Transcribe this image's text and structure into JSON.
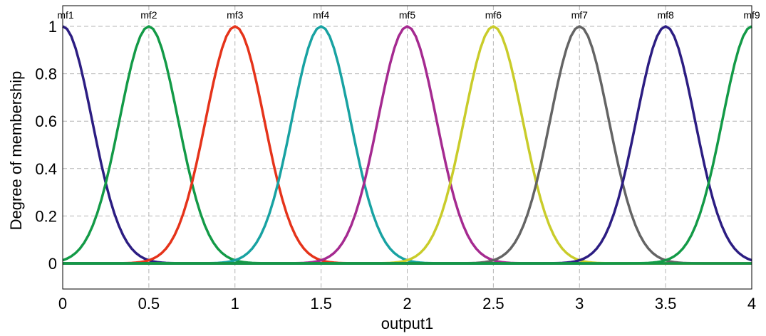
{
  "chart_data": {
    "type": "line",
    "title": "",
    "xlabel": "output1",
    "ylabel": "Degree of membership",
    "xlim": [
      0,
      4
    ],
    "ylim": [
      -0.1,
      1.0
    ],
    "xticks": [
      "0",
      "0.5",
      "1",
      "1.5",
      "2",
      "2.5",
      "3",
      "3.5",
      "4"
    ],
    "yticks": [
      "0",
      "0.2",
      "0.4",
      "0.6",
      "0.8",
      "1"
    ],
    "grid": true,
    "function": "gaussian",
    "sigma": 0.1699,
    "series": [
      {
        "name": "mf1",
        "center": 0.0,
        "color": "#2c1d82"
      },
      {
        "name": "mf2",
        "center": 0.5,
        "color": "#139a47"
      },
      {
        "name": "mf3",
        "center": 1.0,
        "color": "#e5331a"
      },
      {
        "name": "mf4",
        "center": 1.5,
        "color": "#18a2a2"
      },
      {
        "name": "mf5",
        "center": 2.0,
        "color": "#a52a90"
      },
      {
        "name": "mf6",
        "center": 2.5,
        "color": "#c9cc2a"
      },
      {
        "name": "mf7",
        "center": 3.0,
        "color": "#646464"
      },
      {
        "name": "mf8",
        "center": 3.5,
        "color": "#2c1d82"
      },
      {
        "name": "mf9",
        "center": 4.0,
        "color": "#139a47"
      }
    ]
  }
}
